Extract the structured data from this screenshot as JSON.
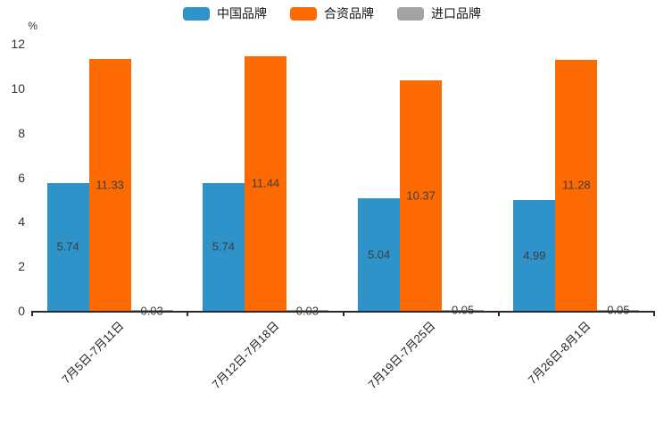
{
  "chart_data": {
    "type": "bar",
    "title": "",
    "ylabel": "%",
    "xlabel": "",
    "ylim": [
      0,
      12
    ],
    "yticks": [
      0,
      2,
      4,
      6,
      8,
      10,
      12
    ],
    "grid": false,
    "legend_position": "top",
    "value_labels": true,
    "categories": [
      "7月5日-7月11日",
      "7月12日-7月18日",
      "7月19日-7月25日",
      "7月26日-8月1日"
    ],
    "series": [
      {
        "name": "中国品牌",
        "color": "#2e93c9",
        "values": [
          5.74,
          5.74,
          5.04,
          4.99
        ]
      },
      {
        "name": "合资品牌",
        "color": "#fd6a01",
        "values": [
          11.33,
          11.44,
          10.37,
          11.28
        ]
      },
      {
        "name": "进口品牌",
        "color": "#a3a3a3",
        "values": [
          0.03,
          0.03,
          0.05,
          0.05
        ]
      }
    ],
    "axis_color": "#2b2b2b",
    "label_color": "#3d3d3d"
  }
}
